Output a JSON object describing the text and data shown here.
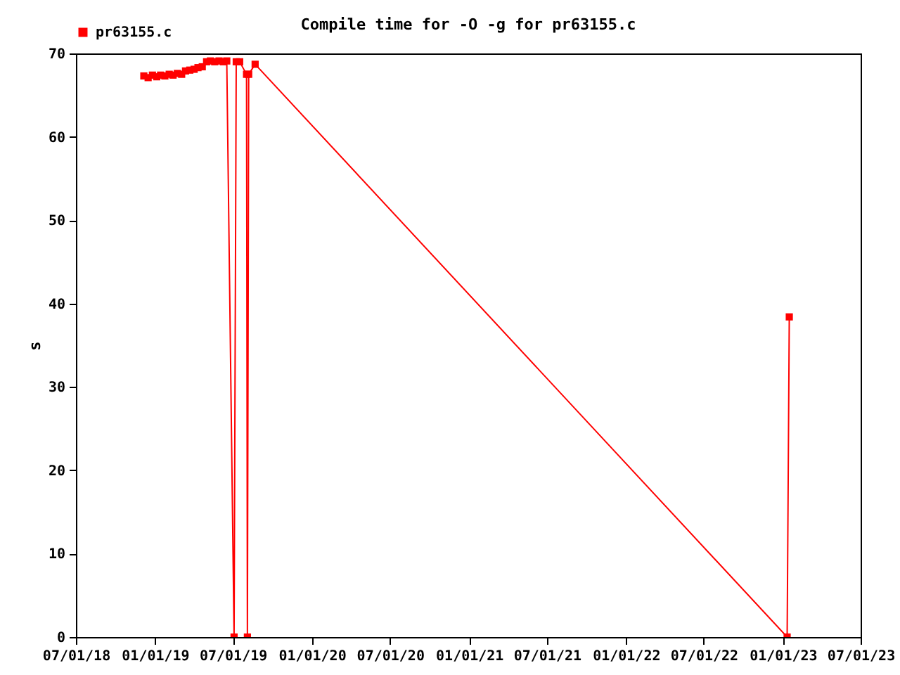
{
  "chart_data": {
    "type": "line",
    "title": "Compile time for -O -g for pr63155.c",
    "ylabel": "s",
    "x": [
      "2018-12-06",
      "2018-12-16",
      "2018-12-26",
      "2019-01-05",
      "2019-01-14",
      "2019-01-24",
      "2019-02-03",
      "2019-02-12",
      "2019-02-22",
      "2019-03-04",
      "2019-03-13",
      "2019-03-23",
      "2019-04-02",
      "2019-04-11",
      "2019-04-21",
      "2019-05-01",
      "2019-05-10",
      "2019-05-20",
      "2019-05-30",
      "2019-06-09",
      "2019-06-17",
      "2019-07-04",
      "2019-07-09",
      "2019-07-17",
      "2019-08-02",
      "2019-08-04",
      "2019-08-07",
      "2019-08-22",
      "2023-01-11",
      "2023-01-16"
    ],
    "series": [
      {
        "name": "pr63155.c",
        "color": "#ff0000",
        "values": [
          67.3,
          67.1,
          67.4,
          67.2,
          67.4,
          67.3,
          67.5,
          67.4,
          67.6,
          67.5,
          67.9,
          68.0,
          68.1,
          68.3,
          68.4,
          69.0,
          69.1,
          69.0,
          69.1,
          69.0,
          69.1,
          0,
          69.0,
          69.0,
          67.5,
          0,
          67.5,
          68.7,
          0,
          38.4
        ]
      }
    ],
    "xlim": [
      "2018-07-01",
      "2023-07-01"
    ],
    "xticks": [
      {
        "value": "2018-07-01",
        "label": "07/01/18"
      },
      {
        "value": "2019-01-01",
        "label": "01/01/19"
      },
      {
        "value": "2019-07-01",
        "label": "07/01/19"
      },
      {
        "value": "2020-01-01",
        "label": "01/01/20"
      },
      {
        "value": "2020-07-01",
        "label": "07/01/20"
      },
      {
        "value": "2021-01-01",
        "label": "01/01/21"
      },
      {
        "value": "2021-07-01",
        "label": "07/01/21"
      },
      {
        "value": "2022-01-01",
        "label": "01/01/22"
      },
      {
        "value": "2022-07-01",
        "label": "07/01/22"
      },
      {
        "value": "2023-01-01",
        "label": "01/01/23"
      },
      {
        "value": "2023-07-01",
        "label": "07/01/23"
      }
    ],
    "ylim": [
      0,
      70
    ],
    "yticks": [
      0,
      10,
      20,
      30,
      40,
      50,
      60,
      70
    ],
    "legend": "top left",
    "marker": "square",
    "line_style": "solid"
  }
}
